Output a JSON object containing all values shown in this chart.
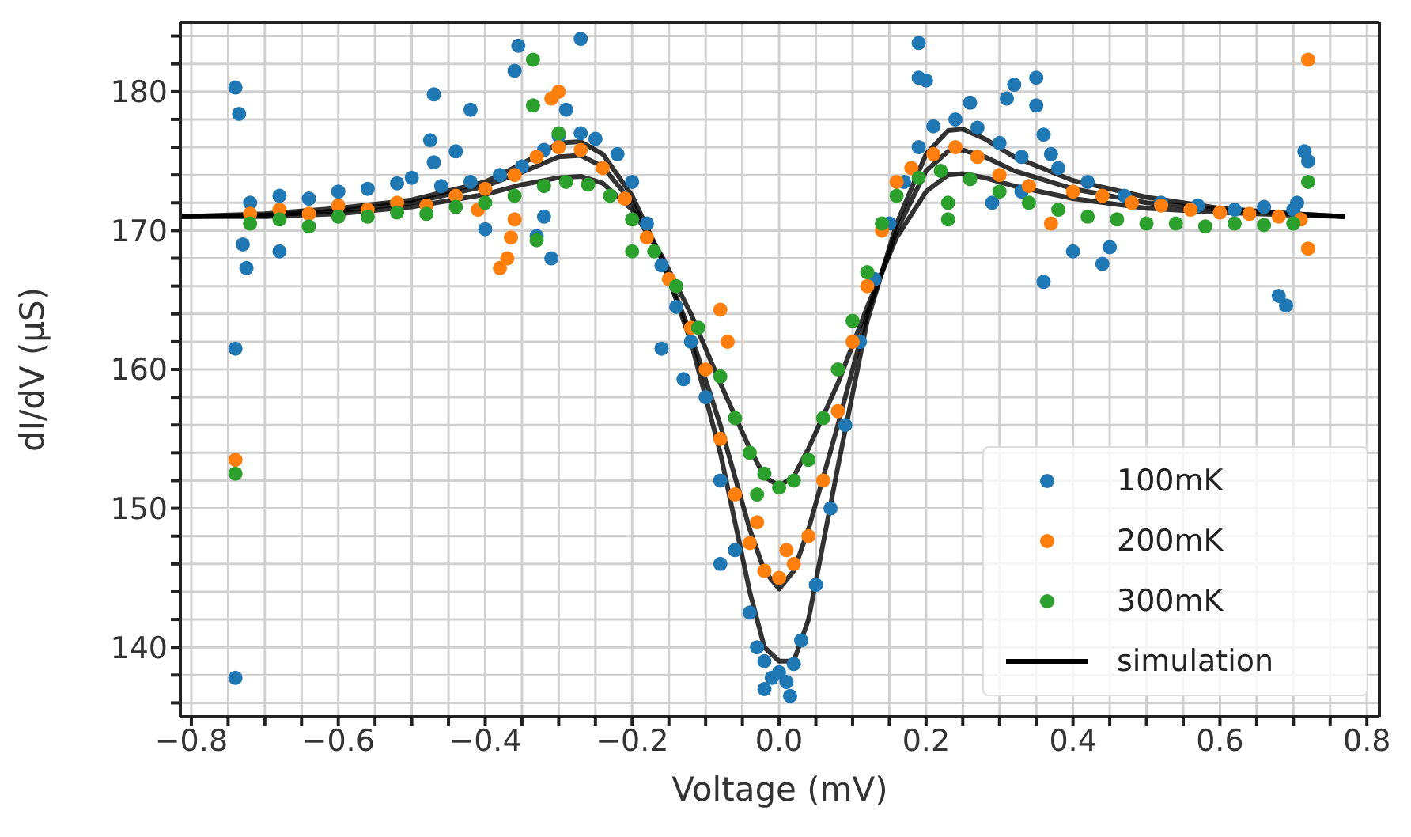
{
  "chart_data": {
    "type": "scatter",
    "xlabel": "Voltage (mV)",
    "ylabel": "dI/dV (μS)",
    "xlim": [
      -0.815,
      0.817
    ],
    "ylim": [
      135,
      185
    ],
    "xticks": [
      {
        "value": -0.8,
        "label": "−0.8"
      },
      {
        "value": -0.75,
        "label": null
      },
      {
        "value": -0.7,
        "label": null
      },
      {
        "value": -0.65,
        "label": null
      },
      {
        "value": -0.6,
        "label": "−0.6"
      },
      {
        "value": -0.55,
        "label": null
      },
      {
        "value": -0.5,
        "label": null
      },
      {
        "value": -0.45,
        "label": null
      },
      {
        "value": -0.4,
        "label": "−0.4"
      },
      {
        "value": -0.35,
        "label": null
      },
      {
        "value": -0.3,
        "label": null
      },
      {
        "value": -0.25,
        "label": null
      },
      {
        "value": -0.2,
        "label": "−0.2"
      },
      {
        "value": -0.15,
        "label": null
      },
      {
        "value": -0.1,
        "label": null
      },
      {
        "value": -0.05,
        "label": null
      },
      {
        "value": 0,
        "label": "0.0"
      },
      {
        "value": 0.05,
        "label": null
      },
      {
        "value": 0.1,
        "label": null
      },
      {
        "value": 0.15,
        "label": null
      },
      {
        "value": 0.2,
        "label": "0.2"
      },
      {
        "value": 0.25,
        "label": null
      },
      {
        "value": 0.3,
        "label": null
      },
      {
        "value": 0.35,
        "label": null
      },
      {
        "value": 0.4,
        "label": "0.4"
      },
      {
        "value": 0.45,
        "label": null
      },
      {
        "value": 0.5,
        "label": null
      },
      {
        "value": 0.55,
        "label": null
      },
      {
        "value": 0.6,
        "label": "0.6"
      },
      {
        "value": 0.65,
        "label": null
      },
      {
        "value": 0.7,
        "label": null
      },
      {
        "value": 0.75,
        "label": null
      },
      {
        "value": 0.8,
        "label": "0.8"
      }
    ],
    "yticks": [
      {
        "value": 136,
        "label": null
      },
      {
        "value": 138,
        "label": null
      },
      140,
      {
        "value": 142,
        "label": null
      },
      {
        "value": 144,
        "label": null
      },
      {
        "value": 146,
        "label": null
      },
      {
        "value": 148,
        "label": null
      },
      150,
      {
        "value": 152,
        "label": null
      },
      {
        "value": 154,
        "label": null
      },
      {
        "value": 156,
        "label": null
      },
      {
        "value": 158,
        "label": null
      },
      160,
      {
        "value": 162,
        "label": null
      },
      {
        "value": 164,
        "label": null
      },
      {
        "value": 166,
        "label": null
      },
      {
        "value": 168,
        "label": null
      },
      170,
      {
        "value": 172,
        "label": null
      },
      {
        "value": 174,
        "label": null
      },
      {
        "value": 176,
        "label": null
      },
      {
        "value": 178,
        "label": null
      },
      180,
      {
        "value": 182,
        "label": null
      },
      {
        "value": 184,
        "label": null
      }
    ],
    "grid": true,
    "legend": "bottom right",
    "series": [
      {
        "name": "100mK",
        "type": "scatter",
        "marker": "circle",
        "color": "#1f77b4",
        "x": [
          -0.74,
          -0.735,
          -0.74,
          -0.74,
          -0.725,
          -0.73,
          -0.68,
          -0.47,
          -0.475,
          -0.47,
          -0.42,
          -0.44,
          -0.36,
          -0.355,
          -0.27,
          -0.29,
          -0.33,
          -0.31,
          -0.32,
          -0.4,
          0.19,
          0.19,
          0.2,
          0.26,
          0.31,
          0.32,
          0.35,
          0.35,
          0.36,
          0.37,
          0.33,
          0.29,
          0.4,
          0.45,
          0.44,
          0.36,
          0.68,
          0.69,
          0.715,
          0.72,
          0.705,
          -0.72,
          -0.68,
          -0.64,
          -0.6,
          -0.56,
          -0.52,
          -0.5,
          -0.46,
          -0.42,
          -0.38,
          -0.35,
          -0.32,
          -0.3,
          -0.27,
          -0.25,
          -0.22,
          -0.2,
          -0.18,
          -0.16,
          -0.14,
          -0.12,
          -0.1,
          -0.08,
          -0.06,
          -0.04,
          -0.03,
          -0.02,
          -0.01,
          0,
          0.01,
          0.02,
          0.03,
          0.05,
          0.07,
          0.09,
          0.11,
          0.13,
          0.15,
          0.17,
          0.19,
          0.21,
          0.24,
          0.27,
          0.3,
          0.33,
          0.38,
          0.42,
          0.47,
          0.52,
          0.57,
          0.62,
          0.66,
          0.7,
          -0.16,
          -0.13,
          -0.08,
          0.015,
          -0.02
        ],
        "values": [
          180.3,
          178.4,
          161.5,
          137.8,
          167.3,
          169,
          168.5,
          179.8,
          176.5,
          174.9,
          178.7,
          175.7,
          181.5,
          183.3,
          183.8,
          178.7,
          169.6,
          168,
          171,
          170.1,
          183.5,
          181,
          180.8,
          179.2,
          179.5,
          180.5,
          181,
          179,
          176.9,
          175.5,
          172.8,
          172,
          168.5,
          168.8,
          167.6,
          166.3,
          165.3,
          164.6,
          175.7,
          175,
          172,
          172,
          172.5,
          172.3,
          172.8,
          173,
          173.4,
          173.8,
          173.2,
          173.5,
          174,
          174.6,
          175.8,
          176.8,
          177,
          176.6,
          175.5,
          173.5,
          170.5,
          167.5,
          164.5,
          162,
          158,
          152,
          147,
          142.5,
          140,
          139,
          137.8,
          138.2,
          137.5,
          138.8,
          140.5,
          144.5,
          150,
          156,
          162,
          166.5,
          170.5,
          173.5,
          176,
          177.5,
          178,
          177.4,
          176.3,
          175.3,
          174.5,
          173.5,
          172.5,
          172,
          171.8,
          171.5,
          171.7,
          171.5,
          161.5,
          159.3,
          146,
          136.5,
          137
        ]
      },
      {
        "name": "200mK",
        "type": "scatter",
        "marker": "circle",
        "color": "#ff7f0e",
        "x": [
          -0.74,
          0.72,
          -0.3,
          -0.31,
          -0.37,
          -0.38,
          -0.365,
          -0.36,
          -0.41,
          -0.08,
          -0.07,
          0.72,
          0.37,
          -0.72,
          -0.68,
          -0.64,
          -0.6,
          -0.56,
          -0.52,
          -0.48,
          -0.44,
          -0.4,
          -0.36,
          -0.33,
          -0.3,
          -0.27,
          -0.24,
          -0.21,
          -0.18,
          -0.15,
          -0.12,
          -0.1,
          -0.08,
          -0.06,
          -0.04,
          -0.02,
          0,
          0.02,
          0.04,
          0.06,
          0.08,
          0.1,
          0.12,
          0.14,
          0.16,
          0.18,
          0.21,
          0.24,
          0.27,
          0.3,
          0.34,
          0.4,
          0.44,
          0.48,
          0.52,
          0.56,
          0.6,
          0.64,
          0.68,
          0.71,
          -0.03,
          0.01
        ],
        "values": [
          153.5,
          182.3,
          180,
          179.5,
          168,
          167.3,
          169.5,
          170.8,
          171.5,
          164.3,
          162,
          168.7,
          170.5,
          171.2,
          171.5,
          171.2,
          171.8,
          171.5,
          172,
          171.8,
          172.5,
          173,
          174,
          175.3,
          176,
          175.8,
          174.5,
          172.3,
          169.5,
          166.5,
          163,
          160,
          155,
          151,
          147.5,
          145.5,
          145,
          146,
          148,
          152,
          157,
          162,
          166,
          170,
          173.5,
          174.5,
          175.5,
          176,
          175.3,
          174,
          173.2,
          172.8,
          172.5,
          172,
          171.8,
          171.5,
          171.3,
          171.2,
          171,
          170.8,
          149,
          147
        ]
      },
      {
        "name": "300mK",
        "type": "scatter",
        "marker": "circle",
        "color": "#2ca02c",
        "x": [
          -0.74,
          -0.335,
          -0.335,
          -0.3,
          0.23,
          0.23,
          -0.2,
          0.72,
          -0.33,
          -0.72,
          -0.68,
          -0.64,
          -0.6,
          -0.56,
          -0.52,
          -0.48,
          -0.44,
          -0.4,
          -0.36,
          -0.32,
          -0.29,
          -0.26,
          -0.23,
          -0.2,
          -0.17,
          -0.14,
          -0.11,
          -0.08,
          -0.06,
          -0.04,
          -0.02,
          0,
          0.02,
          0.04,
          0.06,
          0.08,
          0.1,
          0.12,
          0.14,
          0.16,
          0.19,
          0.22,
          0.26,
          0.3,
          0.34,
          0.38,
          0.42,
          0.46,
          0.5,
          0.54,
          0.58,
          0.62,
          0.66,
          0.7,
          -0.03
        ],
        "values": [
          152.5,
          182.3,
          179,
          177,
          172,
          170.8,
          168.5,
          173.5,
          169.3,
          170.5,
          170.8,
          170.3,
          171,
          171,
          171.3,
          171.2,
          171.7,
          172,
          172.5,
          173.2,
          173.5,
          173.3,
          172.5,
          170.8,
          168.5,
          166,
          163,
          159.5,
          156.5,
          154,
          152.5,
          151.5,
          152,
          153.5,
          156.5,
          160,
          163.5,
          167,
          170.5,
          172.5,
          173.8,
          174.3,
          173.7,
          172.8,
          172,
          171.5,
          171,
          170.8,
          170.5,
          170.5,
          170.3,
          170.5,
          170.4,
          170.5,
          151
        ]
      },
      {
        "name": "simulation",
        "type": "line",
        "marker": "none",
        "line_style": "solid",
        "color": "#000000",
        "x": [
          -0.815,
          -0.7,
          -0.6,
          -0.5,
          -0.4,
          -0.35,
          -0.3,
          -0.27,
          -0.24,
          -0.2,
          -0.16,
          -0.12,
          -0.08,
          -0.04,
          -0.02,
          0,
          0.02,
          0.04,
          0.08,
          0.12,
          0.16,
          0.2,
          0.23,
          0.25,
          0.28,
          0.32,
          0.4,
          0.5,
          0.6,
          0.7,
          0.77
        ],
        "values": [
          171,
          171.2,
          171.6,
          172.2,
          173.5,
          174.8,
          176.3,
          176.4,
          175.5,
          172.5,
          168,
          162,
          154,
          144,
          140,
          139,
          139,
          142,
          153,
          163.5,
          170.5,
          175.5,
          177.2,
          177.3,
          176.6,
          175.3,
          173.6,
          172.4,
          171.6,
          171.2,
          171
        ]
      },
      {
        "type": "line",
        "marker": "none",
        "line_style": "solid",
        "color": "#000000",
        "x": [
          -0.815,
          -0.7,
          -0.6,
          -0.5,
          -0.4,
          -0.35,
          -0.3,
          -0.27,
          -0.24,
          -0.2,
          -0.16,
          -0.12,
          -0.08,
          -0.04,
          -0.02,
          0,
          0.02,
          0.04,
          0.08,
          0.12,
          0.16,
          0.2,
          0.23,
          0.25,
          0.28,
          0.32,
          0.4,
          0.5,
          0.6,
          0.7,
          0.77
        ],
        "values": [
          171,
          171.1,
          171.4,
          172,
          173.2,
          174.2,
          175.3,
          175.4,
          174.6,
          172,
          168,
          162.5,
          156,
          148.5,
          145.5,
          144.2,
          145.5,
          148.5,
          156,
          164,
          170,
          174.3,
          175.7,
          175.8,
          175.3,
          174.3,
          173,
          172,
          171.5,
          171.2,
          171
        ]
      },
      {
        "type": "line",
        "marker": "none",
        "line_style": "solid",
        "color": "#000000",
        "x": [
          -0.815,
          -0.7,
          -0.6,
          -0.5,
          -0.4,
          -0.35,
          -0.3,
          -0.27,
          -0.24,
          -0.2,
          -0.16,
          -0.12,
          -0.08,
          -0.04,
          -0.02,
          0,
          0.02,
          0.04,
          0.08,
          0.12,
          0.16,
          0.2,
          0.23,
          0.25,
          0.28,
          0.32,
          0.4,
          0.5,
          0.6,
          0.7,
          0.77
        ],
        "values": [
          171,
          171,
          171.2,
          171.7,
          172.6,
          173.3,
          173.8,
          173.9,
          173.4,
          171.5,
          168.2,
          164,
          159,
          154.3,
          152.3,
          151.6,
          152.3,
          154.3,
          159,
          164.5,
          169.5,
          172.8,
          174,
          174.1,
          173.8,
          173.2,
          172.3,
          171.6,
          171.3,
          171.1,
          171
        ]
      }
    ]
  }
}
